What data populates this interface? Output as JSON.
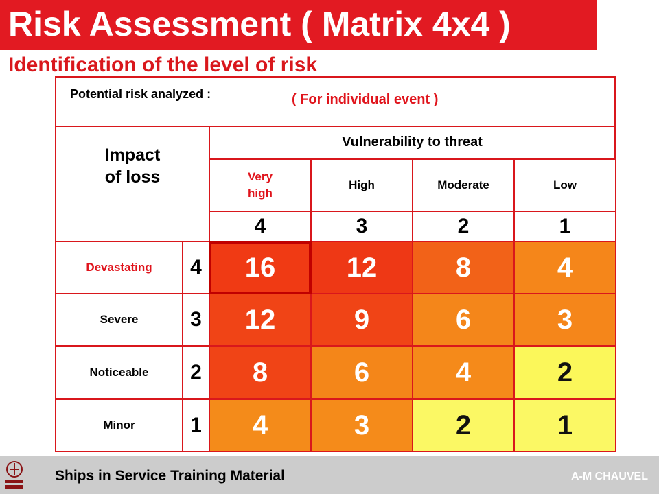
{
  "title": "Risk Assessment ( Matrix 4x4 )",
  "subtitle": "Identification of the level of risk",
  "potential_risk_label": "Potential risk analyzed :",
  "individual_event_label": "( For individual event )",
  "impact_label_line1": "Impact",
  "impact_label_line2": "of loss",
  "vulnerability_label": "Vulnerability to threat",
  "vulnerability_levels": [
    {
      "label_line1": "Very",
      "label_line2": "high",
      "score": "4",
      "red": true
    },
    {
      "label_line1": "High",
      "label_line2": "",
      "score": "3",
      "red": false
    },
    {
      "label_line1": "Moderate",
      "label_line2": "",
      "score": "2",
      "red": false
    },
    {
      "label_line1": "Low",
      "label_line2": "",
      "score": "1",
      "red": false
    }
  ],
  "impact_levels": [
    {
      "label": "Devastating",
      "score": "4",
      "red": true
    },
    {
      "label": "Severe",
      "score": "3",
      "red": false
    },
    {
      "label": "Noticeable",
      "score": "2",
      "red": false
    },
    {
      "label": "Minor",
      "score": "1",
      "red": false
    }
  ],
  "matrix": [
    [
      "16",
      "12",
      "8",
      "4"
    ],
    [
      "12",
      "9",
      "6",
      "3"
    ],
    [
      "8",
      "6",
      "4",
      "2"
    ],
    [
      "4",
      "3",
      "2",
      "1"
    ]
  ],
  "matrix_colors": [
    [
      "#f03a14",
      "#ee3815",
      "#f26218",
      "#f5861a"
    ],
    [
      "#f04416",
      "#f04416",
      "#f4861a",
      "#f5861a"
    ],
    [
      "#f04416",
      "#f48619",
      "#f58a1a",
      "#fbf75a"
    ],
    [
      "#f48b1a",
      "#f58b1a",
      "#fbf864",
      "#fbf864"
    ]
  ],
  "dark_text_cells": [
    [
      2,
      3
    ],
    [
      3,
      2
    ],
    [
      3,
      3
    ]
  ],
  "highlight_cell": [
    0,
    0
  ],
  "footer_text": "Ships in Service Training Material",
  "footer_author": "A-M CHAUVEL",
  "colors": {
    "title_bar": "#e21a22",
    "border": "#d9171c",
    "footer_bg": "#cccccc"
  },
  "logo_icon": "bureau-veritas-logo-icon"
}
